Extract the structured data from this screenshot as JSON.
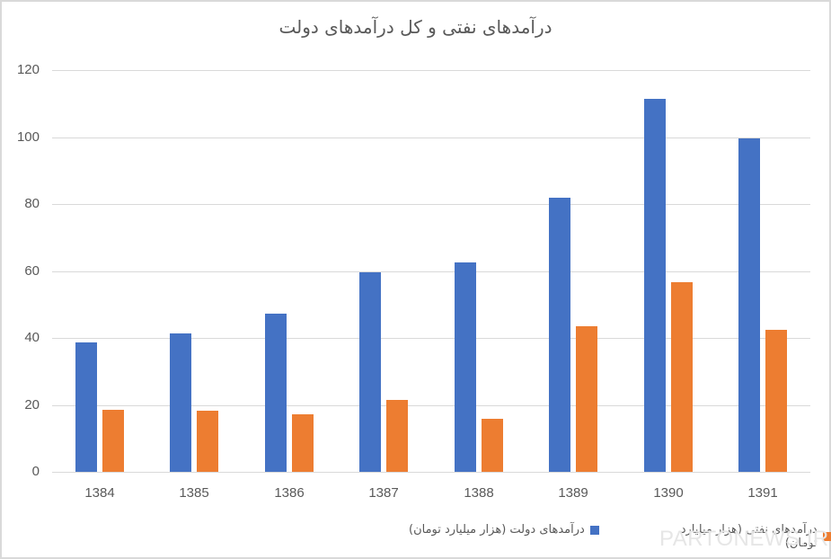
{
  "chart_data": {
    "type": "bar",
    "title": "درآمدهای نفتی و کل درآمدهای دولت",
    "xlabel": "",
    "ylabel": "",
    "categories": [
      "1384",
      "1385",
      "1386",
      "1387",
      "1388",
      "1389",
      "1390",
      "1391"
    ],
    "series": [
      {
        "name": "درآمدهای دولت (هزار میلیارد تومان)",
        "color": "#4472C4",
        "values": [
          38.7,
          41.4,
          47.2,
          59.6,
          62.5,
          81.9,
          111.4,
          99.6
        ]
      },
      {
        "name": "درآمدهای نفتی (هزار میلیارد تومان)",
        "color": "#ED7D31",
        "values": [
          18.5,
          18.3,
          17.2,
          21.5,
          15.8,
          43.5,
          56.6,
          42.4
        ]
      }
    ],
    "ylim": [
      0,
      120
    ],
    "yticks": [
      0,
      20,
      40,
      60,
      80,
      100,
      120
    ],
    "grid": true,
    "legend_position": "bottom"
  },
  "watermark": "PARTONEWS.IR"
}
